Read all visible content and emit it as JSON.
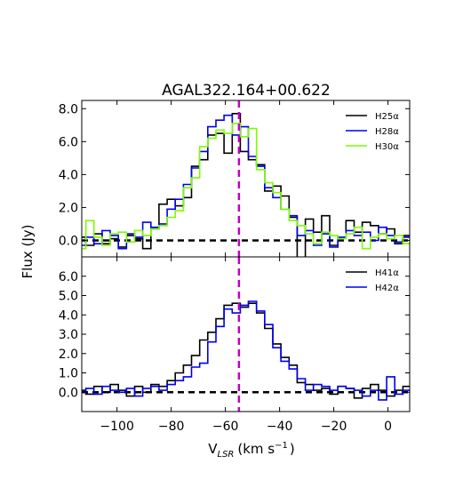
{
  "chart_data": {
    "type": "line",
    "title": "AGAL322.164+00.622",
    "xlabel": "V",
    "xlabel_sub": "LSR",
    "xlabel_unit": "(km s",
    "xlabel_unit_sup": "−1",
    "xlabel_unit_end": ")",
    "ylabel": "Flux (Jy)",
    "xlim": [
      -113,
      8
    ],
    "xticks": [
      -100,
      -80,
      -60,
      -40,
      -20,
      0
    ],
    "xtick_labels": [
      "−100",
      "−80",
      "−60",
      "−40",
      "−20",
      "0"
    ],
    "vline_x": -55,
    "vline_color": "#c000c0",
    "hline_y": 0,
    "panels": [
      {
        "ylim": [
          -1.0,
          8.5
        ],
        "yticks": [
          0,
          2,
          4,
          6,
          8
        ],
        "ytick_labels": [
          "0.0",
          "2.0",
          "4.0",
          "6.0",
          "8.0"
        ],
        "legend": "upper-right",
        "series": [
          {
            "name": "H25α",
            "color": "#000000",
            "x": [
              -113,
              -110,
              -107,
              -104,
              -101,
              -98,
              -95,
              -92,
              -89,
              -86,
              -83,
              -80,
              -77,
              -74,
              -71,
              -68,
              -65,
              -62,
              -59,
              -56,
              -53,
              -50,
              -47,
              -44,
              -41,
              -38,
              -35,
              -32,
              -29,
              -26,
              -23,
              -20,
              -17,
              -14,
              -11,
              -8,
              -5,
              -2,
              1,
              4,
              7
            ],
            "y": [
              0.2,
              -0.3,
              0.4,
              -0.2,
              0.1,
              -0.4,
              0.3,
              0.1,
              -0.5,
              0.7,
              2.2,
              2.5,
              2.1,
              2.6,
              4.5,
              4.9,
              6.4,
              6.5,
              5.3,
              7.7,
              5.4,
              4.9,
              4.6,
              3.0,
              3.3,
              2.7,
              1.4,
              -1.1,
              1.3,
              0.5,
              1.5,
              -0.3,
              0.2,
              1.2,
              0.5,
              1.1,
              0.9,
              0.4,
              0.7,
              -0.2,
              0.3
            ]
          },
          {
            "name": "H28α",
            "color": "#0000ee",
            "x": [
              -113,
              -110,
              -107,
              -104,
              -101,
              -98,
              -95,
              -92,
              -89,
              -86,
              -83,
              -80,
              -77,
              -74,
              -71,
              -68,
              -65,
              -62,
              -59,
              -56,
              -53,
              -50,
              -47,
              -44,
              -41,
              -38,
              -35,
              -32,
              -29,
              -26,
              -23,
              -20,
              -17,
              -14,
              -11,
              -8,
              -5,
              -2,
              1,
              4,
              7
            ],
            "y": [
              -0.3,
              0.2,
              -0.2,
              0.6,
              0.3,
              -0.5,
              0.4,
              0.2,
              1.1,
              0.8,
              1.0,
              1.9,
              2.5,
              3.4,
              4.4,
              5.4,
              6.9,
              7.3,
              7.6,
              6.4,
              6.9,
              5.1,
              4.5,
              3.2,
              2.6,
              1.9,
              1.5,
              0.3,
              0.6,
              -0.3,
              0.4,
              -0.4,
              0.2,
              0.6,
              0.3,
              0.5,
              0.0,
              0.8,
              0.3,
              -0.1,
              0.2
            ]
          },
          {
            "name": "H30α",
            "color": "#7cfc00",
            "x": [
              -113,
              -110,
              -107,
              -104,
              -101,
              -98,
              -95,
              -92,
              -89,
              -86,
              -83,
              -80,
              -77,
              -74,
              -71,
              -68,
              -65,
              -62,
              -59,
              -56,
              -53,
              -50,
              -47,
              -44,
              -41,
              -38,
              -35,
              -32,
              -29,
              -26,
              -23,
              -20,
              -17,
              -14,
              -11,
              -8,
              -5,
              -2,
              1,
              4,
              7
            ],
            "y": [
              -0.5,
              1.2,
              0.2,
              -0.3,
              0.4,
              0.5,
              -0.1,
              0.6,
              0.3,
              0.7,
              0.9,
              1.4,
              1.8,
              3.2,
              3.8,
              5.7,
              6.2,
              6.7,
              6.5,
              7.1,
              6.3,
              6.8,
              4.3,
              3.5,
              2.9,
              1.9,
              1.2,
              0.9,
              0.4,
              -0.2,
              0.5,
              0.3,
              0.1,
              0.4,
              0.8,
              -0.5,
              0.2,
              0.4,
              0.1,
              0.3,
              -0.2
            ]
          }
        ]
      },
      {
        "ylim": [
          -1.0,
          7.0
        ],
        "yticks": [
          0,
          1,
          2,
          3,
          4,
          5,
          6
        ],
        "ytick_labels": [
          "0.0",
          "1.0",
          "2.0",
          "3.0",
          "4.0",
          "5.0",
          "6.0"
        ],
        "legend": "upper-right",
        "series": [
          {
            "name": "H41α",
            "color": "#000000",
            "x": [
              -113,
              -110,
              -107,
              -104,
              -101,
              -98,
              -95,
              -92,
              -89,
              -86,
              -83,
              -80,
              -77,
              -74,
              -71,
              -68,
              -65,
              -62,
              -59,
              -56,
              -53,
              -50,
              -47,
              -44,
              -41,
              -38,
              -35,
              -32,
              -29,
              -26,
              -23,
              -20,
              -17,
              -14,
              -11,
              -8,
              -5,
              -2,
              1,
              4,
              7
            ],
            "y": [
              0.1,
              -0.1,
              0.3,
              0.0,
              0.4,
              0.1,
              -0.2,
              0.3,
              0.0,
              0.4,
              0.3,
              0.6,
              1.0,
              1.4,
              1.9,
              2.7,
              3.1,
              3.8,
              4.5,
              4.6,
              4.4,
              4.6,
              4.1,
              3.3,
              2.5,
              1.8,
              1.4,
              0.5,
              0.4,
              0.1,
              0.2,
              -0.1,
              0.3,
              0.2,
              -0.3,
              0.2,
              0.4,
              0.1,
              -0.2,
              0.1,
              0.3
            ]
          },
          {
            "name": "H42α",
            "color": "#0000ee",
            "x": [
              -113,
              -110,
              -107,
              -104,
              -101,
              -98,
              -95,
              -92,
              -89,
              -86,
              -83,
              -80,
              -77,
              -74,
              -71,
              -68,
              -65,
              -62,
              -59,
              -56,
              -53,
              -50,
              -47,
              -44,
              -41,
              -38,
              -35,
              -32,
              -29,
              -26,
              -23,
              -20,
              -17,
              -14,
              -11,
              -8,
              -5,
              -2,
              1,
              4,
              7
            ],
            "y": [
              0.0,
              0.2,
              -0.1,
              0.3,
              0.1,
              0.0,
              0.2,
              -0.2,
              0.2,
              0.3,
              0.1,
              0.4,
              0.6,
              0.8,
              1.3,
              1.5,
              2.6,
              3.4,
              4.3,
              4.1,
              4.5,
              4.7,
              4.2,
              3.5,
              2.3,
              1.6,
              1.2,
              0.7,
              0.1,
              0.4,
              0.3,
              0.1,
              0.3,
              0.2,
              0.1,
              -0.2,
              0.1,
              -0.4,
              0.8,
              -0.1,
              0.1
            ]
          }
        ]
      }
    ]
  }
}
